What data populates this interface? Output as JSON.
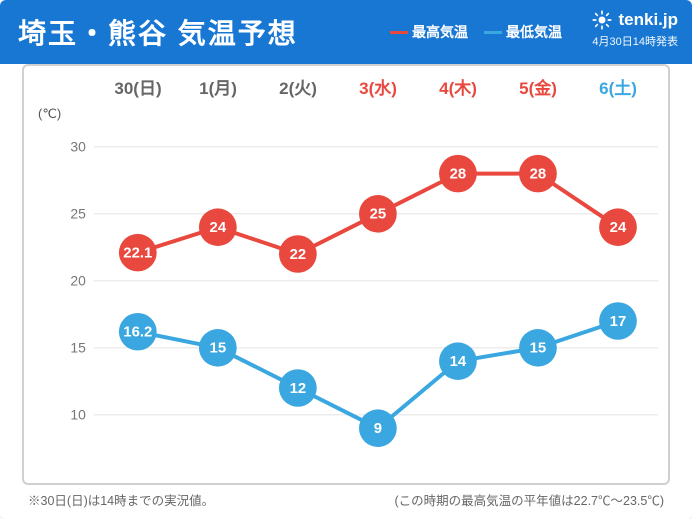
{
  "header": {
    "title": "埼玉・熊谷 気温予想",
    "title_color": "#ffffff",
    "bg_color": "#1877d3",
    "legend_high_label": "最高気温",
    "legend_low_label": "最低気温",
    "legend_high_color": "#e9483f",
    "legend_low_color": "#3aa7e0",
    "logo_text": "tenki.jp",
    "issued": "4月30日14時発表"
  },
  "chart": {
    "type": "line",
    "unit_label": "(℃)",
    "ylim": [
      7,
      32
    ],
    "yticks": [
      10,
      15,
      20,
      25,
      30
    ],
    "grid_color": "#e6e6e6",
    "axis_text_color": "#777",
    "day_default_color": "#666666",
    "day_holiday_color": "#e9483f",
    "day_sat_color": "#3aa7e0",
    "marker_radius": 19,
    "marker_label_color": "#ffffff",
    "marker_label_fontsize": 15,
    "line_width": 4,
    "background_color": "#ffffff",
    "border_color": "#d0d0d0",
    "days": [
      {
        "label": "30(日)",
        "holiday": false,
        "weekday": true
      },
      {
        "label": "1(月)",
        "holiday": false,
        "weekday": true
      },
      {
        "label": "2(火)",
        "holiday": false,
        "weekday": true
      },
      {
        "label": "3(水)",
        "holiday": true,
        "weekday": false
      },
      {
        "label": "4(木)",
        "holiday": true,
        "weekday": false
      },
      {
        "label": "5(金)",
        "holiday": true,
        "weekday": false
      },
      {
        "label": "6(土)",
        "holiday": false,
        "saturday": true
      }
    ],
    "series": {
      "high": {
        "color": "#e9483f",
        "values": [
          22.1,
          24,
          22,
          25,
          28,
          28,
          24
        ],
        "labels": [
          "22.1",
          "24",
          "22",
          "25",
          "28",
          "28",
          "24"
        ]
      },
      "low": {
        "color": "#3aa7e0",
        "values": [
          16.2,
          15,
          12,
          9,
          14,
          15,
          17
        ],
        "labels": [
          "16.2",
          "15",
          "12",
          "9",
          "14",
          "15",
          "17"
        ]
      }
    }
  },
  "footer": {
    "left": "※30日(日)は14時までの実況値。",
    "right": "(この時期の最高気温の平年値は22.7℃～23.5℃)",
    "color": "#777"
  }
}
